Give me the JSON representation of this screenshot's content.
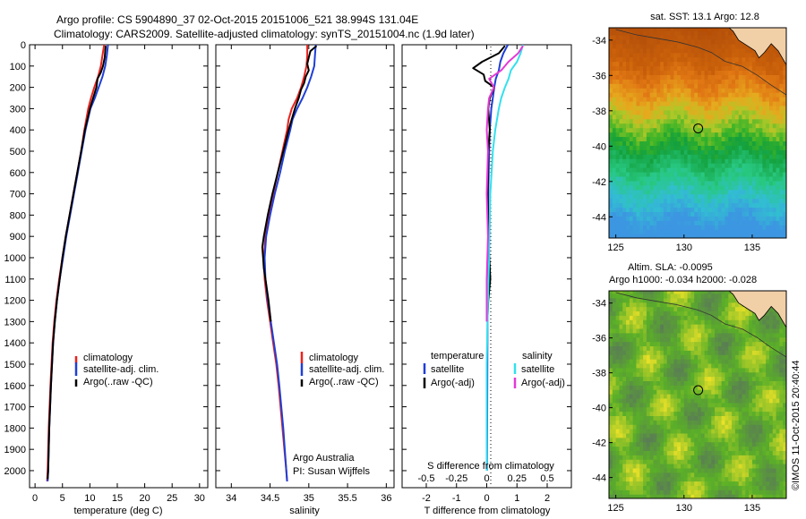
{
  "header": {
    "line1": "Argo profile: CS 5904890_37 02-Oct-2015 20151006_521 38.994S 131.04E",
    "line2": "Climatology: CARS2009. Satellite-adjusted climatology: synTS_20151004.nc (1.9d later)"
  },
  "footer_credit": "©IMOS 11-Oct-2015 20:40:44",
  "colors": {
    "climatology": "#e8231e",
    "satellite": "#1f3fd6",
    "argo": "#000000",
    "sat_T_diff": "#1f3fd6",
    "sal_diff_satellite": "#33e0ee",
    "sal_diff_argo": "#e33ad6"
  },
  "chart_data": [
    {
      "type": "line",
      "panel": "temperature",
      "xlabel": "temperature (deg C)",
      "xlim": [
        -1,
        31.5
      ],
      "ylim": [
        2080,
        0
      ],
      "x_ticks": [
        0,
        5,
        10,
        15,
        20,
        25,
        30
      ],
      "y_ticks": [
        0,
        100,
        200,
        300,
        400,
        500,
        600,
        700,
        800,
        900,
        1000,
        1100,
        1200,
        1300,
        1400,
        1500,
        1600,
        1700,
        1800,
        1900,
        2000
      ],
      "legend": [
        "climatology",
        "satellite-adj. clim.",
        "Argo(..raw -QC)"
      ],
      "series": [
        {
          "name": "climatology",
          "color": "#e8231e",
          "depth": [
            0,
            50,
            100,
            150,
            200,
            250,
            300,
            400,
            500,
            600,
            700,
            800,
            900,
            1000,
            1100,
            1200,
            1300,
            1400,
            1500,
            1600,
            1800,
            2000,
            2050
          ],
          "values": [
            12.6,
            12.3,
            12.0,
            11.5,
            10.8,
            10.2,
            9.7,
            9.0,
            8.4,
            7.7,
            7.0,
            6.3,
            5.6,
            5.0,
            4.4,
            3.9,
            3.5,
            3.2,
            3.0,
            2.8,
            2.5,
            2.3,
            2.2
          ]
        },
        {
          "name": "satellite-adj. clim.",
          "color": "#1f3fd6",
          "depth": [
            0,
            50,
            100,
            150,
            200,
            250,
            300,
            400,
            500,
            600,
            700,
            800,
            900,
            1000,
            1100,
            1200,
            1300,
            1400,
            1500,
            1600,
            1800,
            2000,
            2050
          ],
          "values": [
            13.3,
            13.1,
            12.8,
            12.3,
            11.6,
            10.9,
            10.1,
            9.2,
            8.5,
            7.8,
            7.1,
            6.4,
            5.7,
            5.1,
            4.5,
            4.0,
            3.6,
            3.3,
            3.1,
            2.9,
            2.6,
            2.4,
            2.3
          ]
        },
        {
          "name": "Argo(..raw -QC)",
          "color": "#000000",
          "depth": [
            5,
            30,
            60,
            100,
            130,
            160,
            200,
            250,
            300,
            400,
            500,
            600,
            700,
            800,
            900,
            1000,
            1100,
            1200,
            1300,
            1400,
            1500,
            1600,
            1800,
            2000,
            2040
          ],
          "values": [
            12.9,
            12.8,
            12.7,
            12.4,
            12.0,
            11.4,
            11.2,
            10.6,
            10.0,
            9.1,
            8.4,
            7.7,
            7.0,
            6.3,
            5.6,
            5.0,
            4.5,
            4.0,
            3.6,
            3.3,
            3.1,
            2.9,
            2.6,
            2.4,
            2.3
          ]
        }
      ]
    },
    {
      "type": "line",
      "panel": "salinity",
      "xlabel": "salinity",
      "xlim": [
        33.8,
        36.1
      ],
      "ylim": [
        2080,
        0
      ],
      "x_ticks": [
        34,
        34.5,
        35,
        35.5,
        36
      ],
      "legend": [
        "climatology",
        "satellite-adj. clim.",
        "Argo(..raw -QC)"
      ],
      "annotation": [
        "Argo Australia",
        "PI: Susan Wijffels"
      ],
      "series": [
        {
          "name": "climatology",
          "color": "#e8231e",
          "depth": [
            0,
            50,
            100,
            150,
            200,
            250,
            300,
            350,
            400,
            500,
            600,
            700,
            800,
            900,
            1000,
            1100,
            1200,
            1300,
            1400,
            1500,
            1600,
            1800,
            2000,
            2050
          ],
          "values": [
            34.98,
            34.98,
            34.97,
            34.94,
            34.9,
            34.85,
            34.78,
            34.74,
            34.72,
            34.66,
            34.6,
            34.54,
            34.48,
            34.44,
            34.42,
            34.43,
            34.46,
            34.5,
            34.54,
            34.58,
            34.61,
            34.66,
            34.71,
            34.72
          ]
        },
        {
          "name": "satellite-adj. clim.",
          "color": "#1f3fd6",
          "depth": [
            0,
            50,
            100,
            150,
            200,
            250,
            300,
            350,
            400,
            500,
            600,
            700,
            800,
            900,
            1000,
            1100,
            1200,
            1300,
            1400,
            1500,
            1600,
            1800,
            2000,
            2050
          ],
          "values": [
            35.09,
            35.08,
            35.07,
            35.03,
            34.98,
            34.92,
            34.85,
            34.79,
            34.76,
            34.69,
            34.63,
            34.56,
            34.5,
            34.45,
            34.43,
            34.44,
            34.47,
            34.51,
            34.55,
            34.59,
            34.62,
            34.67,
            34.71,
            34.72
          ]
        },
        {
          "name": "Argo(..raw -QC)",
          "color": "#000000",
          "depth": [
            5,
            30,
            60,
            90,
            120,
            150,
            180,
            210,
            250,
            300,
            350,
            400,
            500,
            600,
            700,
            800,
            900,
            950,
            1000,
            1050,
            1100,
            1200,
            1300
          ],
          "values": [
            35.1,
            35.02,
            35.0,
            34.98,
            35.0,
            34.96,
            34.94,
            34.9,
            34.87,
            34.82,
            34.78,
            34.74,
            34.67,
            34.6,
            34.53,
            34.47,
            34.42,
            34.4,
            34.41,
            34.42,
            34.44,
            34.48,
            34.51
          ]
        }
      ]
    },
    {
      "type": "line",
      "panel": "difference",
      "xlabel": "T difference from climatology",
      "xlim": [
        -2.8,
        2.8
      ],
      "ylim": [
        2080,
        0
      ],
      "x_ticks": [
        -2,
        -1,
        0,
        1,
        2
      ],
      "top_axis_label": "S difference from climatology",
      "top_ticks": [
        {
          "label": "-0.5",
          "value": -0.5
        },
        {
          "label": "-0.25",
          "value": -0.25
        },
        {
          "label": "0",
          "value": 0
        },
        {
          "label": "0.25",
          "value": 0.25
        },
        {
          "label": "0.5",
          "value": 0.5
        }
      ],
      "legend_temperature": [
        "temperature",
        "satellite",
        "Argo(-adj)"
      ],
      "legend_salinity": [
        "salinity",
        "satellite",
        "Argo(-adj)"
      ],
      "series": [
        {
          "name": "satellite",
          "group": "temperature",
          "color": "#1f3fd6",
          "depth": [
            0,
            40,
            80,
            120,
            160,
            200,
            250,
            300,
            400,
            500,
            700,
            1000,
            1200,
            1500,
            2000
          ],
          "values": [
            0.7,
            0.55,
            0.45,
            0.4,
            0.3,
            0.25,
            0.2,
            0.15,
            0.1,
            0.08,
            0.05,
            0.04,
            0.03,
            0.02,
            0.01
          ]
        },
        {
          "name": "Argo(-adj)",
          "group": "temperature",
          "color": "#000000",
          "depth": [
            5,
            40,
            80,
            110,
            140,
            170,
            200,
            250,
            300,
            400,
            500,
            700,
            900,
            1100,
            1200,
            1300
          ],
          "values": [
            0.6,
            0.4,
            -0.15,
            -0.45,
            -0.1,
            -0.05,
            0.25,
            0.1,
            0.05,
            0.1,
            0.05,
            0.03,
            0.05,
            0.12,
            0.05,
            0.02
          ]
        },
        {
          "name": "satellite",
          "group": "salinity",
          "color": "#33e0ee",
          "depth": [
            0,
            40,
            80,
            120,
            160,
            200,
            250,
            300,
            400,
            500,
            700,
            1000,
            1200,
            1500,
            2000
          ],
          "values": [
            0.3,
            0.28,
            0.25,
            0.2,
            0.18,
            0.15,
            0.12,
            0.1,
            0.07,
            0.05,
            0.03,
            0.02,
            0.01,
            0.0,
            0.0
          ]
        },
        {
          "name": "Argo(-adj)",
          "group": "salinity",
          "color": "#e33ad6",
          "depth": [
            5,
            40,
            80,
            120,
            160,
            200,
            250,
            300,
            400,
            500,
            700,
            900,
            1100,
            1300
          ],
          "values": [
            0.3,
            0.26,
            0.18,
            0.12,
            0.02,
            0.06,
            0.02,
            0.01,
            0.0,
            0.01,
            0.0,
            0.01,
            0.0,
            0.0
          ]
        }
      ]
    },
    {
      "type": "heatmap",
      "panel": "sst_map",
      "title": "sat. SST: 13.1 Argo: 12.8",
      "x_ticks": [
        125,
        130,
        135
      ],
      "y_ticks": [
        -34,
        -36,
        -38,
        -40,
        -42,
        -44
      ],
      "xlim": [
        124.5,
        137.5
      ],
      "ylim": [
        -45.2,
        -33.3
      ],
      "float_position": {
        "lon": 131.04,
        "lat": -38.994
      }
    },
    {
      "type": "heatmap",
      "panel": "sla_map",
      "title": "Altim. SLA: -0.0095",
      "subtitle": "Argo h1000: -0.034 h2000: -0.028",
      "x_ticks": [
        125,
        130,
        135
      ],
      "y_ticks": [
        -34,
        -36,
        -38,
        -40,
        -42,
        -44
      ],
      "xlim": [
        124.5,
        137.5
      ],
      "ylim": [
        -45.2,
        -33.3
      ],
      "float_position": {
        "lon": 131.04,
        "lat": -38.994
      }
    }
  ]
}
